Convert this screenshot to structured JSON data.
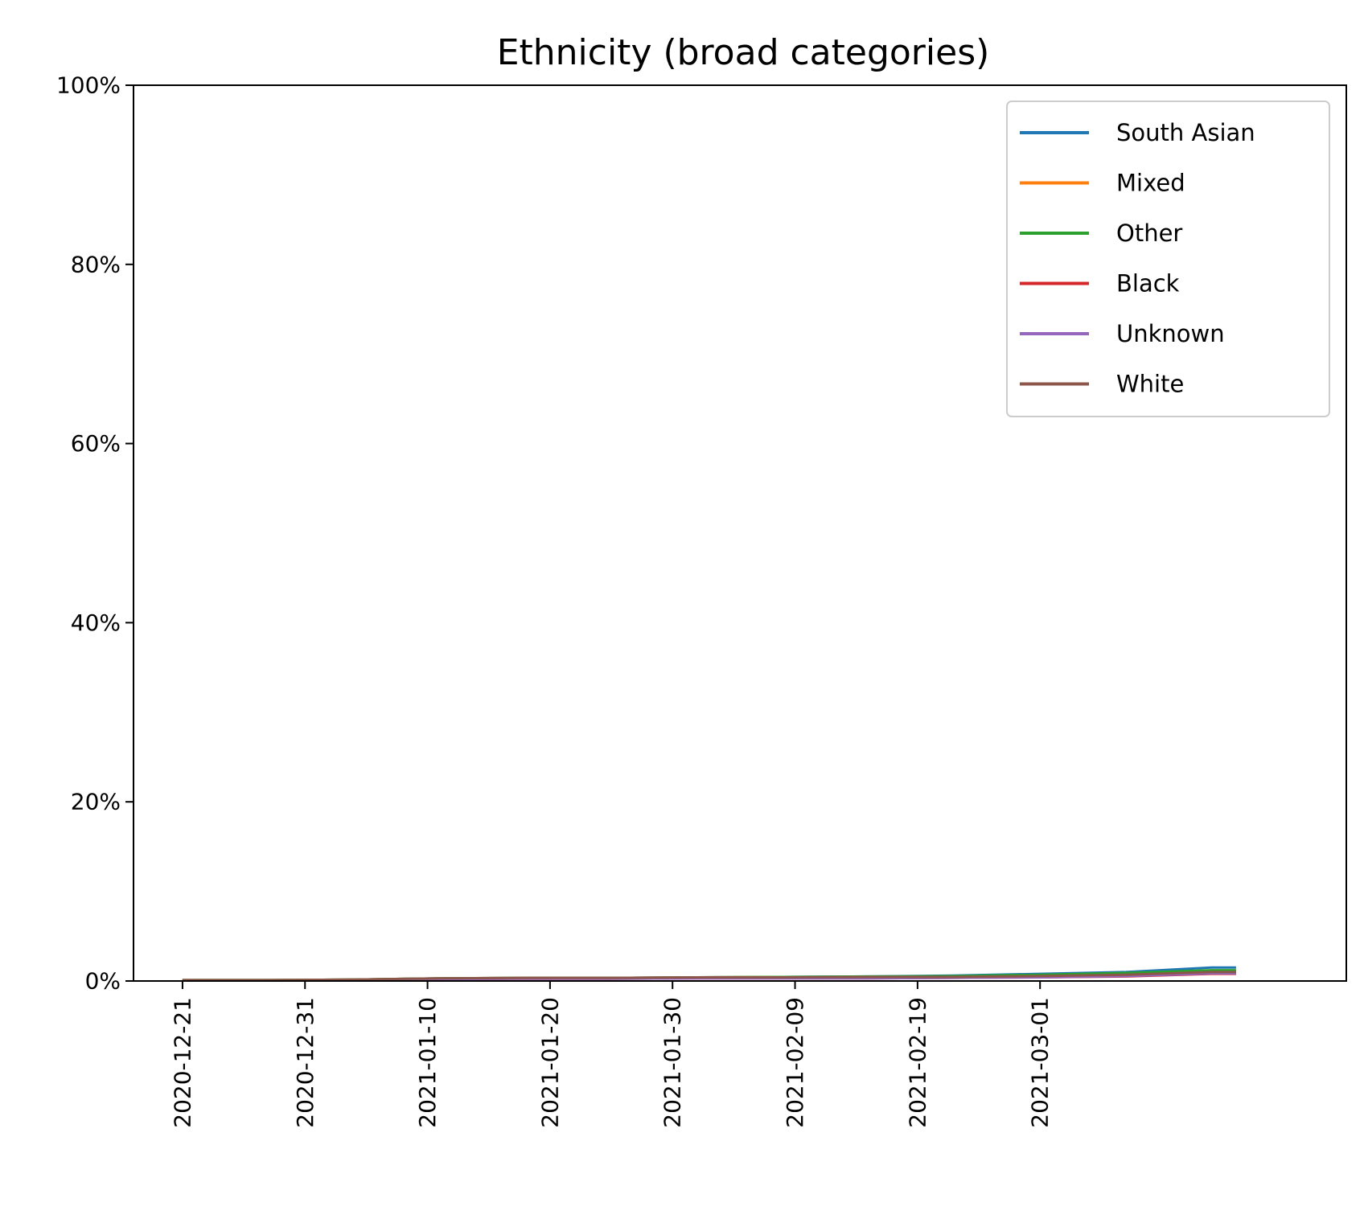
{
  "chart_data": {
    "type": "line",
    "title": "Ethnicity (broad categories)",
    "xlabel": "",
    "ylabel": "",
    "x_ticks": [
      "2020-12-21",
      "2020-12-31",
      "2021-01-10",
      "2021-01-20",
      "2021-01-30",
      "2021-02-09",
      "2021-02-19",
      "2021-03-01"
    ],
    "x_range": [
      "2020-12-17",
      "2021-03-26"
    ],
    "y_ticks": [
      "0%",
      "20%",
      "40%",
      "60%",
      "80%",
      "100%"
    ],
    "ylim": [
      0,
      100
    ],
    "grid": false,
    "legend_position": "top-right",
    "x": [
      "2020-12-21",
      "2020-12-28",
      "2021-01-04",
      "2021-01-11",
      "2021-01-18",
      "2021-01-25",
      "2021-02-01",
      "2021-02-08",
      "2021-02-15",
      "2021-02-22",
      "2021-03-01",
      "2021-03-08",
      "2021-03-15",
      "2021-03-17"
    ],
    "series": [
      {
        "name": "South Asian",
        "color": "#1f77b4",
        "values": [
          0.1,
          0.1,
          0.15,
          0.3,
          0.35,
          0.35,
          0.4,
          0.45,
          0.5,
          0.6,
          0.8,
          1.0,
          1.5,
          1.5
        ]
      },
      {
        "name": "Mixed",
        "color": "#ff7f0e",
        "values": [
          0.1,
          0.1,
          0.15,
          0.3,
          0.35,
          0.35,
          0.4,
          0.45,
          0.45,
          0.5,
          0.6,
          0.8,
          1.1,
          1.1
        ]
      },
      {
        "name": "Other",
        "color": "#2ca02c",
        "values": [
          0.1,
          0.1,
          0.15,
          0.3,
          0.35,
          0.35,
          0.4,
          0.45,
          0.5,
          0.55,
          0.7,
          0.9,
          1.2,
          1.2
        ]
      },
      {
        "name": "Black",
        "color": "#d62728",
        "values": [
          0.05,
          0.05,
          0.1,
          0.2,
          0.25,
          0.25,
          0.3,
          0.3,
          0.3,
          0.35,
          0.4,
          0.5,
          0.8,
          0.8
        ]
      },
      {
        "name": "Unknown",
        "color": "#9467bd",
        "values": [
          0.05,
          0.05,
          0.1,
          0.2,
          0.25,
          0.25,
          0.3,
          0.3,
          0.3,
          0.35,
          0.4,
          0.55,
          0.85,
          0.85
        ]
      },
      {
        "name": "White",
        "color": "#8c564b",
        "values": [
          0.1,
          0.1,
          0.15,
          0.3,
          0.35,
          0.35,
          0.4,
          0.4,
          0.45,
          0.45,
          0.55,
          0.7,
          1.0,
          1.0
        ]
      }
    ]
  }
}
